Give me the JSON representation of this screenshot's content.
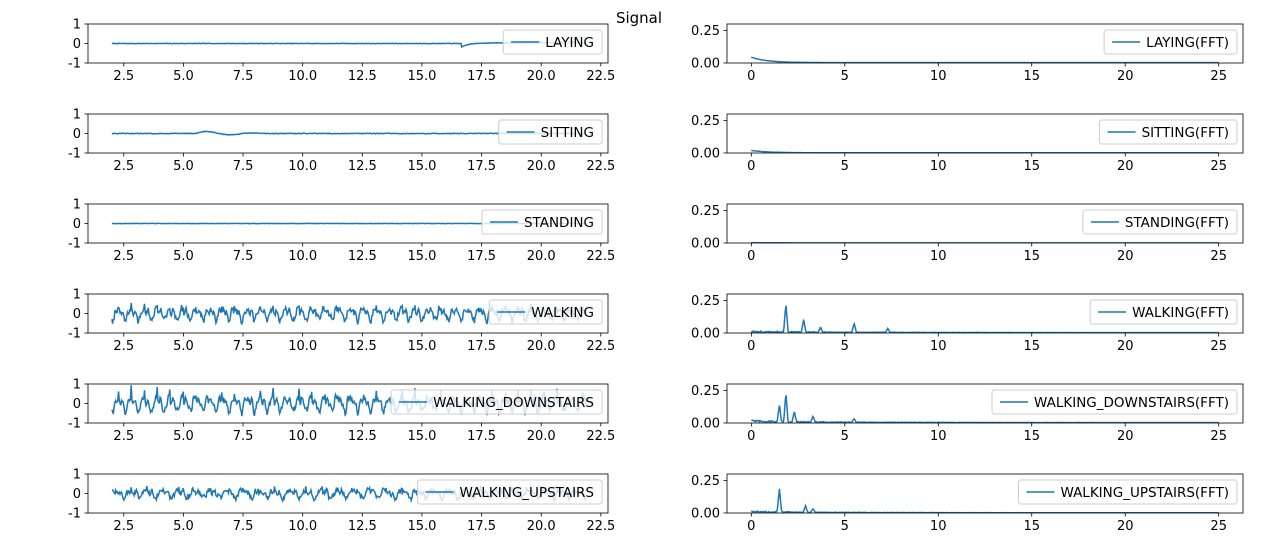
{
  "figure": {
    "title": "Signal"
  },
  "colors": {
    "line": "#1f77b4",
    "axes": "#000000",
    "legend_border": "#cccccc",
    "background": "#ffffff"
  },
  "chart_data": [
    {
      "type": "line",
      "activity": "LAYING",
      "legend_label": "LAYING",
      "legend_loc": "upper right",
      "xlim": [
        1.0,
        22.8
      ],
      "ylim": [
        -1,
        1
      ],
      "xticks": [
        "2.5",
        "5.0",
        "7.5",
        "10.0",
        "12.5",
        "15.0",
        "17.5",
        "20.0",
        "22.5"
      ],
      "yticks": [
        "-1",
        "0",
        "1"
      ],
      "x_range": [
        2.0,
        21.9
      ],
      "signal": {
        "kind": "flat",
        "level": 0.0,
        "amp": 0.01,
        "event": {
          "at": 16.65,
          "drop": -0.2,
          "recover_to": 0.05
        }
      }
    },
    {
      "type": "line",
      "activity": "LAYING",
      "legend_label": "LAYING(FFT)",
      "legend_loc": "upper right",
      "xlim": [
        -1.3,
        26.3
      ],
      "ylim": [
        0,
        0.3
      ],
      "xticks": [
        "0",
        "5",
        "10",
        "15",
        "20",
        "25"
      ],
      "yticks": [
        "0.00",
        "0.25"
      ],
      "x_range": [
        0,
        25
      ],
      "signal": {
        "kind": "decay",
        "start": 0.045,
        "tail": 0.003,
        "peaks": []
      }
    },
    {
      "type": "line",
      "activity": "SITTING",
      "legend_label": "SITTING",
      "legend_loc": "upper right",
      "xlim": [
        1.0,
        22.8
      ],
      "ylim": [
        -1,
        1
      ],
      "xticks": [
        "2.5",
        "5.0",
        "7.5",
        "10.0",
        "12.5",
        "15.0",
        "17.5",
        "20.0",
        "22.5"
      ],
      "yticks": [
        "-1",
        "0",
        "1"
      ],
      "x_range": [
        2.0,
        21.9
      ],
      "signal": {
        "kind": "flat",
        "level": 0.0,
        "amp": 0.015,
        "bump": {
          "from": 5.5,
          "to": 8.5,
          "amp": 0.12
        }
      }
    },
    {
      "type": "line",
      "activity": "SITTING",
      "legend_label": "SITTING(FFT)",
      "legend_loc": "upper right",
      "xlim": [
        -1.3,
        26.3
      ],
      "ylim": [
        0,
        0.3
      ],
      "xticks": [
        "0",
        "5",
        "10",
        "15",
        "20",
        "25"
      ],
      "yticks": [
        "0.00",
        "0.25"
      ],
      "x_range": [
        0,
        25
      ],
      "signal": {
        "kind": "decay",
        "start": 0.02,
        "tail": 0.002,
        "peaks": []
      }
    },
    {
      "type": "line",
      "activity": "STANDING",
      "legend_label": "STANDING",
      "legend_loc": "upper right",
      "xlim": [
        1.0,
        22.8
      ],
      "ylim": [
        -1,
        1
      ],
      "xticks": [
        "2.5",
        "5.0",
        "7.5",
        "10.0",
        "12.5",
        "15.0",
        "17.5",
        "20.0",
        "22.5"
      ],
      "yticks": [
        "-1",
        "0",
        "1"
      ],
      "x_range": [
        2.0,
        21.9
      ],
      "signal": {
        "kind": "flat",
        "level": 0.0,
        "amp": 0.008
      }
    },
    {
      "type": "line",
      "activity": "STANDING",
      "legend_label": "STANDING(FFT)",
      "legend_loc": "upper right",
      "xlim": [
        -1.3,
        26.3
      ],
      "ylim": [
        0,
        0.3
      ],
      "xticks": [
        "0",
        "5",
        "10",
        "15",
        "20",
        "25"
      ],
      "yticks": [
        "0.00",
        "0.25"
      ],
      "x_range": [
        0,
        25
      ],
      "signal": {
        "kind": "decay",
        "start": 0.003,
        "tail": 0.001,
        "peaks": []
      }
    },
    {
      "type": "line",
      "activity": "WALKING",
      "legend_label": "WALKING",
      "legend_loc": "upper right",
      "xlim": [
        1.0,
        22.8
      ],
      "ylim": [
        -1,
        1
      ],
      "xticks": [
        "2.5",
        "5.0",
        "7.5",
        "10.0",
        "12.5",
        "15.0",
        "17.5",
        "20.0",
        "22.5"
      ],
      "yticks": [
        "-1",
        "0",
        "1"
      ],
      "x_range": [
        2.0,
        21.9
      ],
      "signal": {
        "kind": "osc",
        "amp": 0.38,
        "freq": 1.85,
        "spike": 0.2
      }
    },
    {
      "type": "line",
      "activity": "WALKING",
      "legend_label": "WALKING(FFT)",
      "legend_loc": "upper right",
      "xlim": [
        -1.3,
        26.3
      ],
      "ylim": [
        0,
        0.3
      ],
      "xticks": [
        "0",
        "5",
        "10",
        "15",
        "20",
        "25"
      ],
      "yticks": [
        "0.00",
        "0.25"
      ],
      "x_range": [
        0,
        25
      ],
      "signal": {
        "kind": "decay",
        "start": 0.005,
        "tail": 0.003,
        "noise": 0.012,
        "peaks": [
          [
            1.85,
            0.22
          ],
          [
            2.8,
            0.1
          ],
          [
            3.7,
            0.04
          ],
          [
            5.5,
            0.07
          ],
          [
            7.3,
            0.03
          ]
        ]
      }
    },
    {
      "type": "line",
      "activity": "WALKING_DOWNSTAIRS",
      "legend_label": "WALKING_DOWNSTAIRS",
      "legend_loc": "upper right",
      "xlim": [
        1.0,
        22.8
      ],
      "ylim": [
        -1,
        1
      ],
      "xticks": [
        "2.5",
        "5.0",
        "7.5",
        "10.0",
        "12.5",
        "15.0",
        "17.5",
        "20.0",
        "22.5"
      ],
      "yticks": [
        "-1",
        "0",
        "1"
      ],
      "x_range": [
        2.0,
        21.9
      ],
      "signal": {
        "kind": "osc",
        "amp": 0.45,
        "freq": 1.85,
        "spike": 0.5
      }
    },
    {
      "type": "line",
      "activity": "WALKING_DOWNSTAIRS",
      "legend_label": "WALKING_DOWNSTAIRS(FFT)",
      "legend_loc": "upper right",
      "xlim": [
        -1.3,
        26.3
      ],
      "ylim": [
        0,
        0.3
      ],
      "xticks": [
        "0",
        "5",
        "10",
        "15",
        "20",
        "25"
      ],
      "yticks": [
        "0.00",
        "0.25"
      ],
      "x_range": [
        0,
        25
      ],
      "signal": {
        "kind": "decay",
        "start": 0.01,
        "tail": 0.003,
        "noise": 0.014,
        "peaks": [
          [
            1.5,
            0.13
          ],
          [
            1.85,
            0.22
          ],
          [
            2.3,
            0.08
          ],
          [
            3.3,
            0.05
          ],
          [
            5.5,
            0.03
          ]
        ]
      }
    },
    {
      "type": "line",
      "activity": "WALKING_UPSTAIRS",
      "legend_label": "WALKING_UPSTAIRS",
      "legend_loc": "upper right",
      "xlim": [
        1.0,
        22.8
      ],
      "ylim": [
        -1,
        1
      ],
      "xticks": [
        "2.5",
        "5.0",
        "7.5",
        "10.0",
        "12.5",
        "15.0",
        "17.5",
        "20.0",
        "22.5"
      ],
      "yticks": [
        "-1",
        "0",
        "1"
      ],
      "x_range": [
        2.0,
        21.9
      ],
      "signal": {
        "kind": "osc",
        "amp": 0.25,
        "freq": 1.5,
        "spike": 0.15
      }
    },
    {
      "type": "line",
      "activity": "WALKING_UPSTAIRS",
      "legend_label": "WALKING_UPSTAIRS(FFT)",
      "legend_loc": "upper right",
      "xlim": [
        -1.3,
        26.3
      ],
      "ylim": [
        0,
        0.3
      ],
      "xticks": [
        "0",
        "5",
        "10",
        "15",
        "20",
        "25"
      ],
      "yticks": [
        "0.00",
        "0.25"
      ],
      "x_range": [
        0,
        25
      ],
      "signal": {
        "kind": "decay",
        "start": 0.008,
        "tail": 0.002,
        "noise": 0.01,
        "peaks": [
          [
            1.5,
            0.18
          ],
          [
            2.9,
            0.05
          ],
          [
            3.3,
            0.03
          ]
        ]
      }
    }
  ]
}
